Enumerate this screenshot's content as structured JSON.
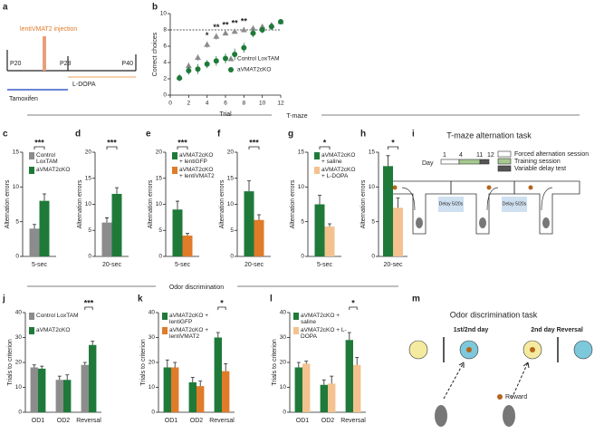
{
  "chart_data": [
    {
      "panel": "b",
      "type": "line",
      "x": [
        1,
        2,
        3,
        4,
        5,
        6,
        7,
        8,
        9,
        10,
        11,
        12
      ],
      "xlabel": "Trial",
      "ylabel": "Correct choices",
      "xlim": [
        0,
        12
      ],
      "xticks": [
        0,
        2,
        4,
        6,
        8,
        10,
        12
      ],
      "ylim": [
        0,
        10
      ],
      "yticks": [
        0,
        2,
        4,
        6,
        8,
        10
      ],
      "reference_line": 8,
      "series": [
        {
          "name": "Control LoxTAM",
          "color": "#8c8c8c",
          "marker": "triangle",
          "values": [
            2.2,
            3.6,
            4.6,
            6.2,
            7.2,
            7.6,
            7.8,
            8.0,
            8.2,
            8.4,
            8.6,
            9.0
          ],
          "errors": [
            0.3,
            0.4,
            0.4,
            0.4,
            0.4,
            0.3,
            0.3,
            0.3,
            0.3,
            0.3,
            0.3,
            0.3
          ]
        },
        {
          "name": "aVMAT2cKO",
          "color": "#1f7a3a",
          "marker": "circle",
          "values": [
            2.1,
            3.0,
            3.2,
            3.8,
            4.2,
            4.5,
            5.0,
            5.8,
            7.6,
            8.0,
            8.4,
            9.0
          ],
          "errors": [
            0.4,
            0.5,
            0.6,
            0.5,
            0.6,
            0.6,
            0.7,
            0.6,
            0.5,
            0.4,
            0.4,
            0.3
          ]
        }
      ],
      "annotations": [
        {
          "x": 4,
          "text": "*"
        },
        {
          "x": 5,
          "text": "**"
        },
        {
          "x": 6,
          "text": "**"
        },
        {
          "x": 7,
          "text": "**"
        },
        {
          "x": 8,
          "text": "**"
        }
      ]
    },
    {
      "panel": "c",
      "type": "bar",
      "categories": [
        "5-sec"
      ],
      "ylabel": "Alternation errors",
      "ylim": [
        0,
        15
      ],
      "yticks": [
        0,
        5,
        10,
        15
      ],
      "significance": "***",
      "series": [
        {
          "name": "Control LoxTAM",
          "color": "#8c8c8c",
          "values": [
            4
          ],
          "errors": [
            0.6
          ]
        },
        {
          "name": "aVMAT2cKO",
          "color": "#1f7a3a",
          "values": [
            8
          ],
          "errors": [
            1
          ]
        }
      ]
    },
    {
      "panel": "d",
      "type": "bar",
      "categories": [
        "20-sec"
      ],
      "ylabel": "Alternation errors",
      "ylim": [
        0,
        20
      ],
      "yticks": [
        0,
        5,
        10,
        15,
        20
      ],
      "significance": "***",
      "series": [
        {
          "name": "Control LoxTAM",
          "color": "#8c8c8c",
          "values": [
            6.5
          ],
          "errors": [
            0.9
          ]
        },
        {
          "name": "aVMAT2cKO",
          "color": "#1f7a3a",
          "values": [
            12
          ],
          "errors": [
            1.2
          ]
        }
      ],
      "legend": false
    },
    {
      "panel": "e",
      "type": "bar",
      "categories": [
        "5-sec"
      ],
      "ylabel": "Alternation errors",
      "ylim": [
        0,
        20
      ],
      "yticks": [
        0,
        5,
        10,
        15,
        20
      ],
      "significance": "***",
      "series": [
        {
          "name": "aVMAT2cKO + lentiGFP",
          "color": "#1f7a3a",
          "values": [
            9
          ],
          "errors": [
            1.6
          ]
        },
        {
          "name": "aVMAT2cKO + lentiVMAT2",
          "color": "#e07b2a",
          "values": [
            4
          ],
          "errors": [
            0.4
          ]
        }
      ]
    },
    {
      "panel": "f",
      "type": "bar",
      "categories": [
        "20-sec"
      ],
      "ylabel": "Alternation errors",
      "ylim": [
        0,
        20
      ],
      "yticks": [
        0,
        5,
        10,
        15,
        20
      ],
      "significance": "***",
      "series": [
        {
          "name": "aVMAT2cKO + lentiGFP",
          "color": "#1f7a3a",
          "values": [
            12.5
          ],
          "errors": [
            2
          ]
        },
        {
          "name": "aVMAT2cKO + lentiVMAT2",
          "color": "#e07b2a",
          "values": [
            7
          ],
          "errors": [
            1
          ]
        }
      ],
      "legend": false
    },
    {
      "panel": "g",
      "type": "bar",
      "categories": [
        "5-sec"
      ],
      "ylabel": "Alternation errors",
      "ylim": [
        0,
        15
      ],
      "yticks": [
        0,
        5,
        10,
        15
      ],
      "significance": "*",
      "series": [
        {
          "name": "aVMAT2cKO + saline",
          "color": "#1f7a3a",
          "values": [
            7.5
          ],
          "errors": [
            1.3
          ]
        },
        {
          "name": "aVMAT2cKO + L-DOPA",
          "color": "#f3c28f",
          "values": [
            4.3
          ],
          "errors": [
            0.4
          ]
        }
      ]
    },
    {
      "panel": "h",
      "type": "bar",
      "categories": [
        "20-sec"
      ],
      "ylabel": "Alternation errors",
      "ylim": [
        0,
        15
      ],
      "yticks": [
        0,
        5,
        10,
        15
      ],
      "significance": "*",
      "series": [
        {
          "name": "aVMAT2cKO + saline",
          "color": "#1f7a3a",
          "values": [
            13
          ],
          "errors": [
            1.5
          ]
        },
        {
          "name": "aVMAT2cKO + L-DOPA",
          "color": "#f3c28f",
          "values": [
            7
          ],
          "errors": [
            1.4
          ]
        }
      ],
      "legend": false
    },
    {
      "panel": "j",
      "type": "bar",
      "categories": [
        "OD1",
        "OD2",
        "Reversal"
      ],
      "ylabel": "Trials to criterion",
      "ylim": [
        0,
        40
      ],
      "yticks": [
        0,
        10,
        20,
        30,
        40
      ],
      "significance": "***",
      "series": [
        {
          "name": "Control LoxTAM",
          "color": "#8c8c8c",
          "values": [
            18,
            13,
            19
          ],
          "errors": [
            1,
            1.5,
            1
          ]
        },
        {
          "name": "aVMAT2cKO",
          "color": "#1f7a3a",
          "values": [
            17.5,
            13,
            27
          ],
          "errors": [
            1,
            2,
            1.5
          ]
        }
      ]
    },
    {
      "panel": "k",
      "type": "bar",
      "categories": [
        "OD1",
        "OD2",
        "Reversal"
      ],
      "ylabel": "Trials to criterion",
      "ylim": [
        0,
        40
      ],
      "yticks": [
        0,
        10,
        20,
        30,
        40
      ],
      "significance": "*",
      "series": [
        {
          "name": "aVMAT2cKO + lentiGFP",
          "color": "#1f7a3a",
          "values": [
            18,
            12,
            30
          ],
          "errors": [
            3,
            2,
            2
          ]
        },
        {
          "name": "aVMAT2cKO + lentiVMAT2",
          "color": "#e07b2a",
          "values": [
            18,
            10.5,
            16.5
          ],
          "errors": [
            2,
            2,
            3
          ]
        }
      ]
    },
    {
      "panel": "l",
      "type": "bar",
      "categories": [
        "OD1",
        "OD2",
        "Reversal"
      ],
      "ylabel": "Trials to criterion",
      "ylim": [
        0,
        40
      ],
      "yticks": [
        0,
        10,
        20,
        30,
        40
      ],
      "significance": "*",
      "series": [
        {
          "name": "aVMAT2cKO + saline",
          "color": "#1f7a3a",
          "values": [
            18,
            11,
            29
          ],
          "errors": [
            2,
            2,
            3
          ]
        },
        {
          "name": "aVMAT2cKO + L-DOPA",
          "color": "#f3c28f",
          "values": [
            19.5,
            11.5,
            19
          ],
          "errors": [
            1,
            3,
            3
          ]
        }
      ]
    }
  ],
  "sections": [
    "T-maze",
    "Odor discrimination"
  ],
  "timeline": {
    "panel": "a",
    "injection": "lentiVMAT2 injection",
    "ages": [
      "P20",
      "P28",
      "P40"
    ],
    "ldopa": "L-DOPA",
    "tamoxifen": "Tamoxifen"
  },
  "tmaze": {
    "panel": "i",
    "title": "T-maze alternation task",
    "day": "Day",
    "days": [
      "1",
      "4",
      "11",
      "12"
    ],
    "legend": [
      "Forced alternation session",
      "Training session",
      "Variable delay test"
    ],
    "delay_labels": [
      "Delay 5/20s",
      "Delay 5/20s"
    ]
  },
  "odor": {
    "panel": "m",
    "title": "Odor discrimination task",
    "phases": [
      "1st/2nd day",
      "2nd day Reversal"
    ],
    "reward": "Reward"
  }
}
